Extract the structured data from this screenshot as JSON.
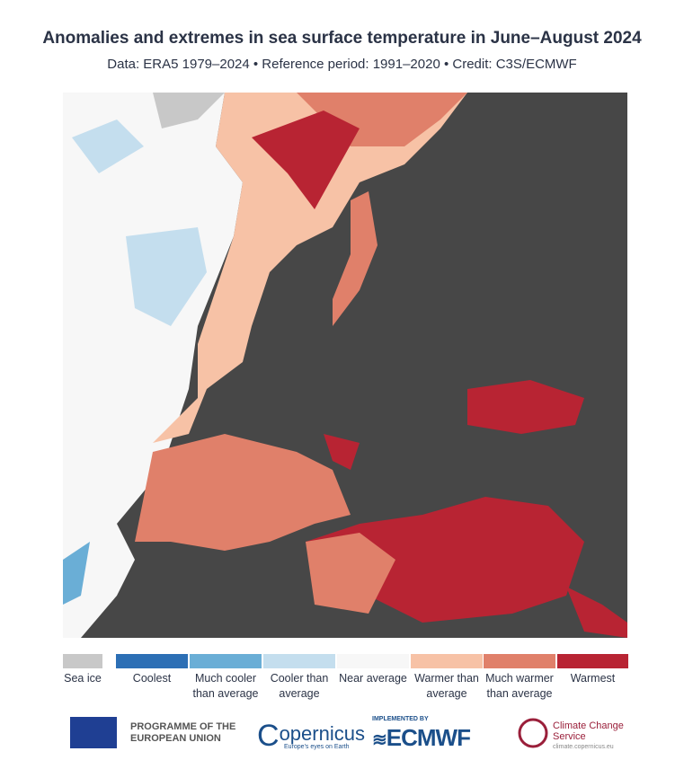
{
  "header": {
    "title": "Anomalies and extremes in sea surface temperature in June–August 2024",
    "subtitle": "Data: ERA5 1979–2024 • Reference period: 1991–2020 • Credit: C3S/ECMWF"
  },
  "legend": {
    "items": [
      {
        "label": "Sea ice",
        "color": "#c8c8c8"
      },
      {
        "label": "Coolest",
        "color": "#2c6fb5"
      },
      {
        "label": "Much cooler than average",
        "color": "#6aaed6"
      },
      {
        "label": "Cooler than average",
        "color": "#c4deee"
      },
      {
        "label": "Near average",
        "color": "#f7f7f7"
      },
      {
        "label": "Warmer than average",
        "color": "#f7c2a6"
      },
      {
        "label": "Much warmer than average",
        "color": "#e0806a"
      },
      {
        "label": "Warmest",
        "color": "#b82433"
      }
    ]
  },
  "footer": {
    "eu": "PROGRAMME OF THE EUROPEAN UNION",
    "copernicus": "opernicus",
    "copernicus_tagline": "Europe's eyes on Earth",
    "ecmwf_pre": "IMPLEMENTED BY",
    "ecmwf": "ECMWF",
    "c3s": "Climate Change Service",
    "c3s_url": "climate.copernicus.eu"
  }
}
